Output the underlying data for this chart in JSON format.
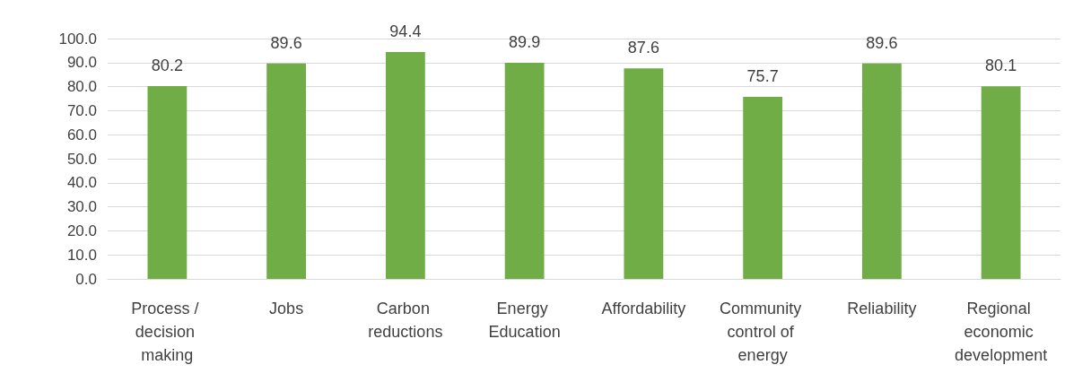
{
  "chart_data": {
    "type": "bar",
    "categories": [
      "Process / decision making",
      "Jobs",
      "Carbon reductions",
      "Energy Education",
      "Affordability",
      "Community control of energy",
      "Reliability",
      "Regional economic development"
    ],
    "values": [
      80.2,
      89.6,
      94.4,
      89.9,
      87.6,
      75.7,
      89.6,
      80.1
    ],
    "color": "#70ad47",
    "data_labels": true,
    "grid": "y",
    "ylim": [
      0,
      100
    ],
    "yticks": [
      {
        "value": 0,
        "label": "0.0"
      },
      {
        "value": 10,
        "label": "10.0"
      },
      {
        "value": 20,
        "label": "20.0"
      },
      {
        "value": 30,
        "label": "30.0"
      },
      {
        "value": 40,
        "label": "40.0"
      },
      {
        "value": 50,
        "label": "50.0"
      },
      {
        "value": 60,
        "label": "60.0"
      },
      {
        "value": 70,
        "label": "70.0"
      },
      {
        "value": 80,
        "label": "80.0"
      },
      {
        "value": 90,
        "label": "90.0"
      },
      {
        "value": 100,
        "label": "100.0"
      }
    ]
  }
}
